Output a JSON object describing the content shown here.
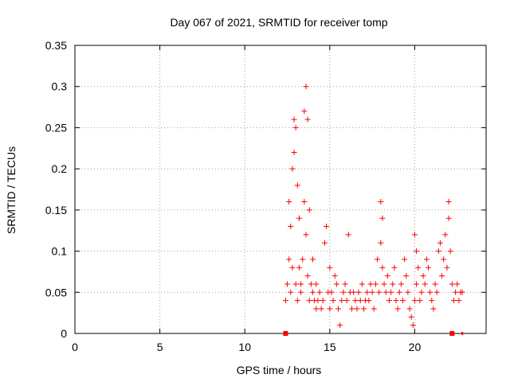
{
  "chart_data": {
    "type": "scatter",
    "title": "Day 067 of 2021, SRMTID for receiver tomp",
    "xlabel": "GPS time / hours",
    "ylabel": "SRMTID / TECUs",
    "xlim": [
      0,
      24.2
    ],
    "ylim": [
      0,
      0.35
    ],
    "xticks": [
      0,
      5,
      10,
      15,
      20
    ],
    "yticks": [
      0,
      0.05,
      0.1,
      0.15,
      0.2,
      0.25,
      0.3,
      0.35
    ],
    "xtick_labels": [
      "0",
      "5",
      "10",
      "15",
      "20"
    ],
    "ytick_labels": [
      "0",
      "0.05",
      "0.1",
      "0.15",
      "0.2",
      "0.25",
      "0.3",
      "0.35"
    ],
    "grid": true,
    "marker": "+",
    "color": "#ff0000",
    "series": [
      {
        "name": "SRMTID",
        "x": [
          12.4,
          12.5,
          12.6,
          12.6,
          12.7,
          12.7,
          12.8,
          12.8,
          12.9,
          12.9,
          13.0,
          13.0,
          13.1,
          13.1,
          13.2,
          13.2,
          13.3,
          13.3,
          13.4,
          13.5,
          13.5,
          13.6,
          13.6,
          13.7,
          13.7,
          13.8,
          13.8,
          13.9,
          14.0,
          14.0,
          14.1,
          14.2,
          14.2,
          14.3,
          14.4,
          14.5,
          14.6,
          14.7,
          14.8,
          14.9,
          15.0,
          15.0,
          15.1,
          15.2,
          15.3,
          15.4,
          15.5,
          15.6,
          15.7,
          15.8,
          15.9,
          16.0,
          16.1,
          16.2,
          16.3,
          16.4,
          16.5,
          16.6,
          16.7,
          16.8,
          16.9,
          17.0,
          17.1,
          17.2,
          17.3,
          17.4,
          17.5,
          17.6,
          17.7,
          17.8,
          17.9,
          18.0,
          18.0,
          18.1,
          18.1,
          18.2,
          18.3,
          18.4,
          18.5,
          18.6,
          18.7,
          18.8,
          18.9,
          19.0,
          19.1,
          19.2,
          19.3,
          19.4,
          19.5,
          19.6,
          19.7,
          19.8,
          19.9,
          20.0,
          20.0,
          20.1,
          20.1,
          20.2,
          20.3,
          20.4,
          20.5,
          20.6,
          20.7,
          20.8,
          20.9,
          21.0,
          21.1,
          21.2,
          21.3,
          21.4,
          21.5,
          21.6,
          21.7,
          21.8,
          21.9,
          22.0,
          22.0,
          22.1,
          22.2,
          22.3,
          22.4,
          22.5,
          22.6,
          22.7,
          22.8
        ],
        "y": [
          0.04,
          0.06,
          0.09,
          0.16,
          0.05,
          0.13,
          0.08,
          0.2,
          0.22,
          0.26,
          0.25,
          0.06,
          0.18,
          0.04,
          0.14,
          0.08,
          0.06,
          0.05,
          0.09,
          0.27,
          0.16,
          0.3,
          0.12,
          0.26,
          0.07,
          0.15,
          0.04,
          0.06,
          0.05,
          0.09,
          0.04,
          0.03,
          0.06,
          0.04,
          0.05,
          0.03,
          0.04,
          0.11,
          0.13,
          0.05,
          0.08,
          0.03,
          0.05,
          0.04,
          0.07,
          0.06,
          0.03,
          0.01,
          0.04,
          0.05,
          0.06,
          0.04,
          0.12,
          0.05,
          0.03,
          0.05,
          0.04,
          0.03,
          0.05,
          0.04,
          0.06,
          0.03,
          0.04,
          0.05,
          0.04,
          0.06,
          0.05,
          0.03,
          0.06,
          0.09,
          0.05,
          0.16,
          0.11,
          0.14,
          0.08,
          0.06,
          0.05,
          0.07,
          0.04,
          0.05,
          0.06,
          0.08,
          0.04,
          0.03,
          0.05,
          0.06,
          0.04,
          0.09,
          0.07,
          0.05,
          0.03,
          0.02,
          0.01,
          0.12,
          0.04,
          0.1,
          0.06,
          0.08,
          0.04,
          0.05,
          0.07,
          0.06,
          0.09,
          0.08,
          0.05,
          0.04,
          0.03,
          0.06,
          0.05,
          0.1,
          0.11,
          0.07,
          0.09,
          0.12,
          0.08,
          0.16,
          0.14,
          0.1,
          0.06,
          0.04,
          0.05,
          0.06,
          0.04,
          0.05,
          0.05
        ],
        "x_square_markers": [
          12.4,
          22.2
        ],
        "x_small_marker": [
          22.8
        ]
      }
    ]
  }
}
